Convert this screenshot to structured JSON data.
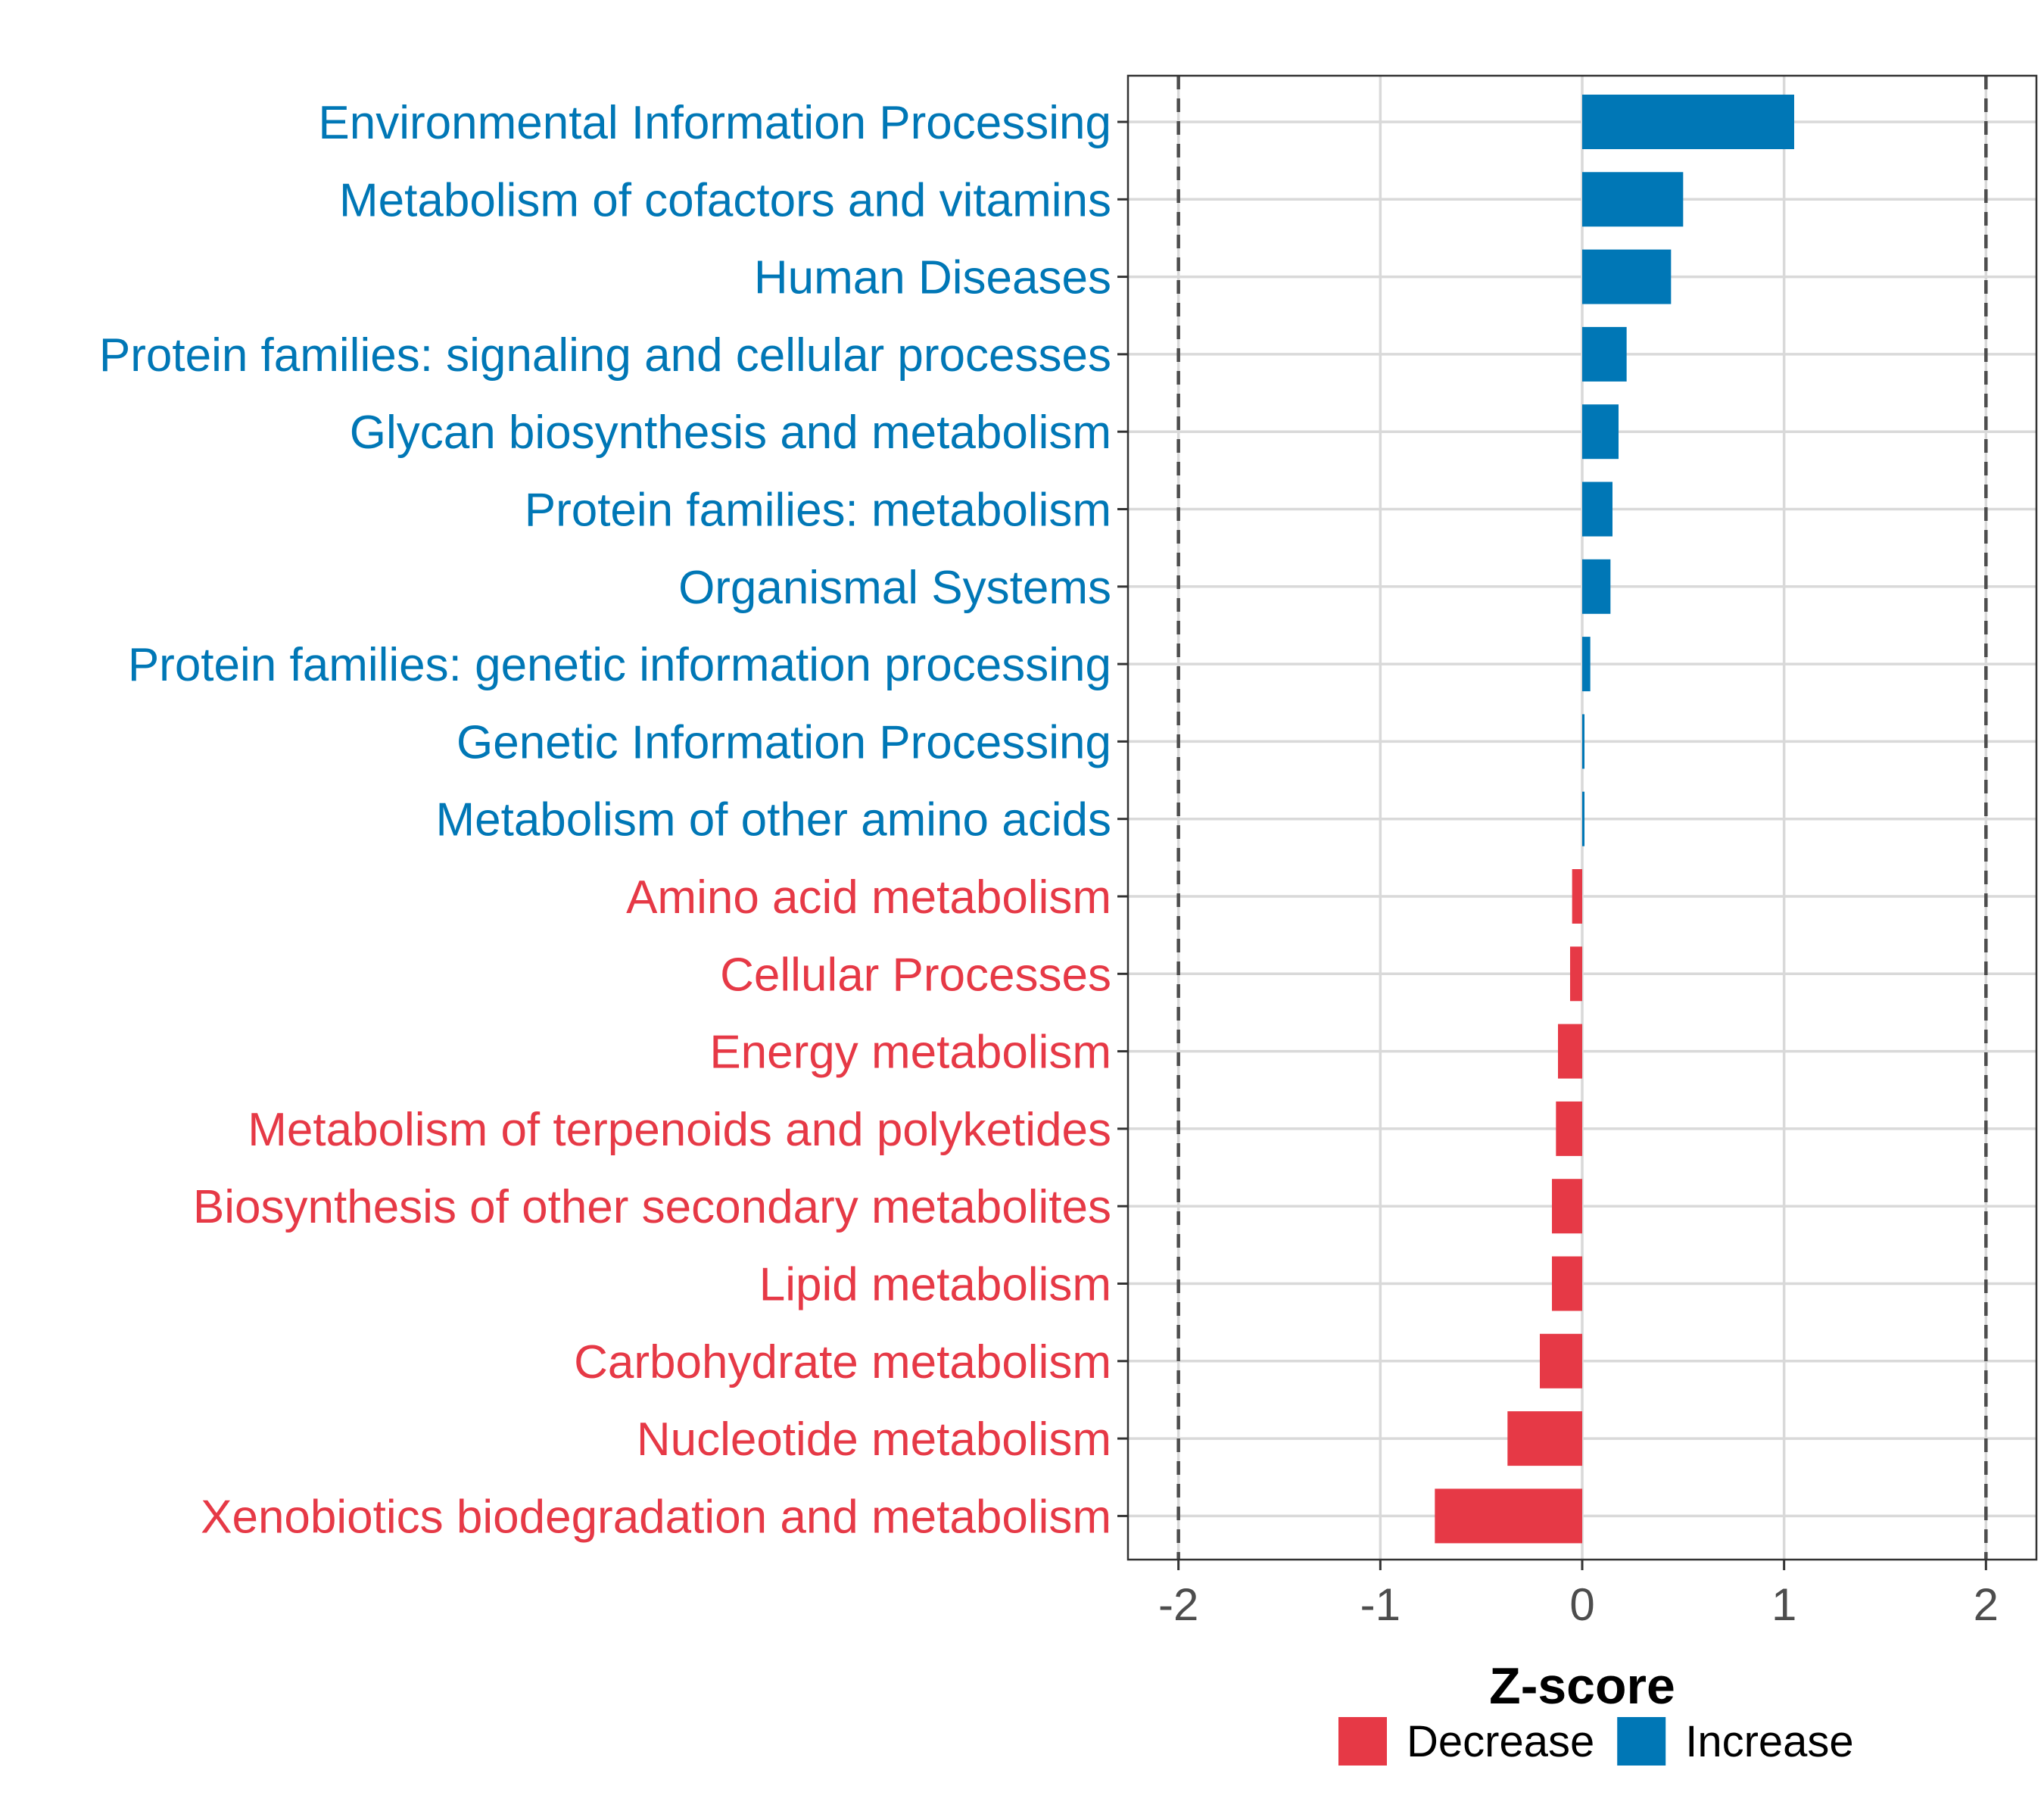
{
  "chart_data": {
    "type": "bar",
    "orientation": "horizontal",
    "xlabel": "Z-score",
    "ylabel": "",
    "xlim": [
      -2.25,
      2.25
    ],
    "xticks": [
      "-2",
      "-1",
      "0",
      "1",
      "2"
    ],
    "reference_lines": [
      -2,
      2
    ],
    "grid": true,
    "legend_position": "bottom",
    "categories": [
      "Environmental Information Processing",
      "Metabolism of cofactors and vitamins",
      "Human Diseases",
      "Protein families: signaling and cellular processes",
      "Glycan biosynthesis and metabolism",
      "Protein families: metabolism",
      "Organismal Systems",
      "Protein families: genetic information processing",
      "Genetic Information Processing",
      "Metabolism of other amino acids",
      "Amino acid metabolism",
      "Cellular Processes",
      "Energy metabolism",
      "Metabolism of terpenoids and polyketides",
      "Biosynthesis of other secondary metabolites",
      "Lipid metabolism",
      "Carbohydrate metabolism",
      "Nucleotide metabolism",
      "Xenobiotics biodegradation and metabolism"
    ],
    "values": [
      1.05,
      0.5,
      0.44,
      0.22,
      0.18,
      0.15,
      0.14,
      0.04,
      0.01,
      0.01,
      -0.05,
      -0.06,
      -0.12,
      -0.13,
      -0.15,
      -0.15,
      -0.21,
      -0.37,
      -0.73
    ],
    "groups": [
      "Increase",
      "Increase",
      "Increase",
      "Increase",
      "Increase",
      "Increase",
      "Increase",
      "Increase",
      "Increase",
      "Increase",
      "Decrease",
      "Decrease",
      "Decrease",
      "Decrease",
      "Decrease",
      "Decrease",
      "Decrease",
      "Decrease",
      "Decrease"
    ],
    "legend": [
      {
        "name": "Decrease",
        "color": "#e63946"
      },
      {
        "name": "Increase",
        "color": "#0077b6"
      }
    ]
  }
}
